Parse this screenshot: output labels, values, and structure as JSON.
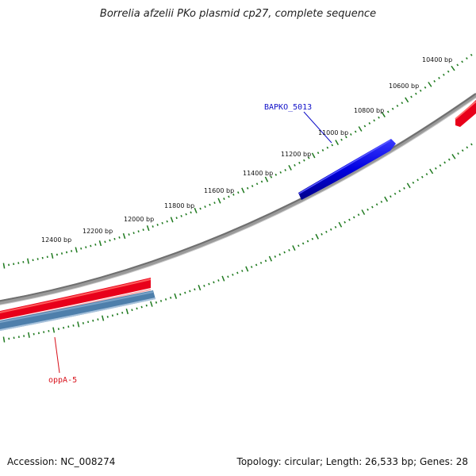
{
  "title": "Borrelia afzelii PKo plasmid cp27, complete sequence",
  "accession": "Accession: NC_008274",
  "summary": "Topology: circular; Length: 26,533 bp; Genes: 28",
  "colors": {
    "backbone": "#8a8a8a",
    "ticks": "#1f7a1f",
    "forward_gene": "#e8001a",
    "reverse_gene": "#4e7fab",
    "highlight_gene": "#0a0adf"
  },
  "tick_labels": [
    "10400 bp",
    "10600 bp",
    "10800 bp",
    "11000 bp",
    "11200 bp",
    "11400 bp",
    "11600 bp",
    "11800 bp",
    "12000 bp",
    "12200 bp",
    "12400 bp"
  ],
  "genes": [
    {
      "label": "BAPKO_5013",
      "color": "#1010c8"
    },
    {
      "label": "oppA-5",
      "color": "#d8101a"
    }
  ]
}
